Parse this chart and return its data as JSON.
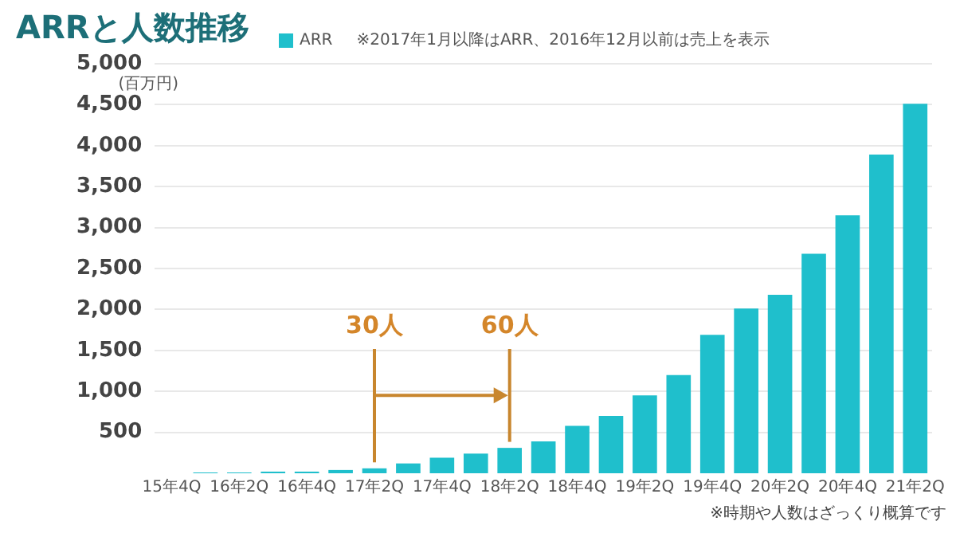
{
  "chart_data": {
    "type": "bar",
    "title": "ARRと人数推移",
    "ylabel": "(百万円)",
    "categories": [
      "15年4Q",
      null,
      "16年2Q",
      null,
      "16年4Q",
      null,
      "17年2Q",
      null,
      "17年4Q",
      null,
      "18年2Q",
      null,
      "18年4Q",
      null,
      "19年2Q",
      null,
      "19年4Q",
      null,
      "20年2Q",
      null,
      "20年4Q",
      null,
      "21年2Q"
    ],
    "series": [
      {
        "name": "ARR",
        "color": "#1fbfcc",
        "values": [
          0,
          10,
          10,
          20,
          20,
          40,
          60,
          120,
          190,
          240,
          310,
          390,
          580,
          700,
          950,
          1200,
          1690,
          2010,
          2180,
          2680,
          3150,
          3890,
          4510
        ]
      }
    ],
    "ylim": [
      0,
      5000
    ],
    "yticks": [
      500,
      {
        "value": 1000,
        "label": "1,000"
      },
      {
        "value": 1500,
        "label": "1,500"
      },
      {
        "value": 2000,
        "label": "2,000"
      },
      {
        "value": 2500,
        "label": "2,500"
      },
      {
        "value": 3000,
        "label": "3,000"
      },
      {
        "value": 3500,
        "label": "3,500"
      },
      {
        "value": 4000,
        "label": "4,000"
      },
      {
        "value": 4500,
        "label": "4,500"
      },
      {
        "value": 5000,
        "label": "5,000"
      }
    ],
    "grid": "y",
    "legend": "top left",
    "annotations": [
      "※2017年1月以降はARR、2016年12月以前は売上を表示",
      {
        "text": "30人",
        "x": "17年2Q",
        "y": 60
      },
      {
        "text": "60人",
        "x": "18年2Q",
        "y": 310
      },
      "※時期や人数はざっくり概算です"
    ]
  }
}
